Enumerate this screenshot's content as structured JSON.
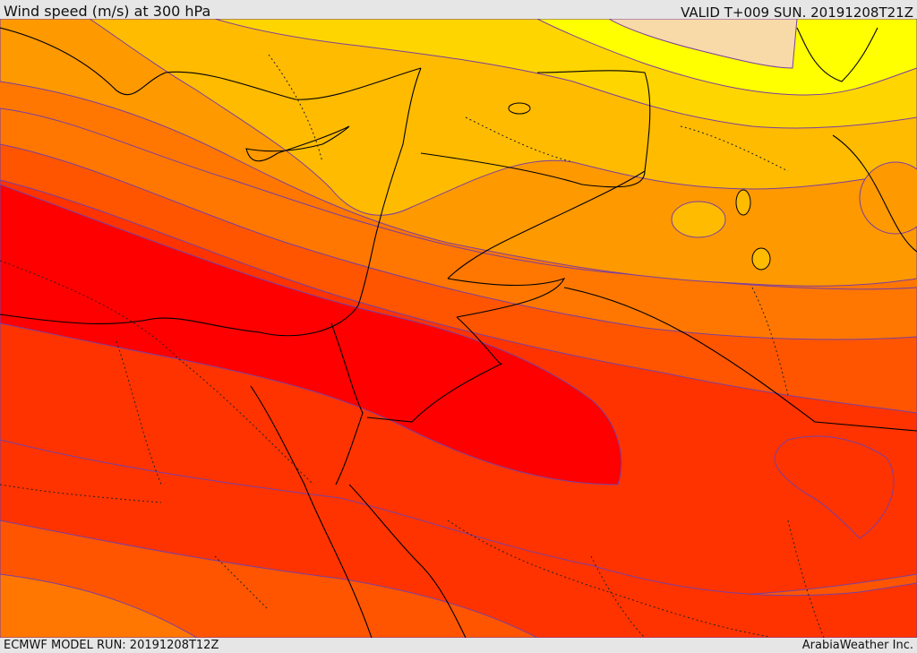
{
  "header": {
    "title": "Wind speed (m/s) at 300 hPa",
    "valid": "VALID T+009 SUN. 20191208T21Z"
  },
  "footer": {
    "model_run": "ECMWF MODEL RUN: 20191208T12Z",
    "brand": "ArabiaWeather Inc."
  },
  "map": {
    "colors": {
      "speed_1": "#f8d9a8",
      "speed_2": "#ffff00",
      "speed_3": "#ffd500",
      "speed_4": "#ffbb00",
      "speed_5": "#ff9900",
      "speed_6": "#ff7700",
      "speed_7": "#ff5500",
      "speed_8": "#ff3300",
      "speed_9": "#ff0000",
      "contour": "#7a3fa0",
      "land_border": "#000000"
    }
  }
}
